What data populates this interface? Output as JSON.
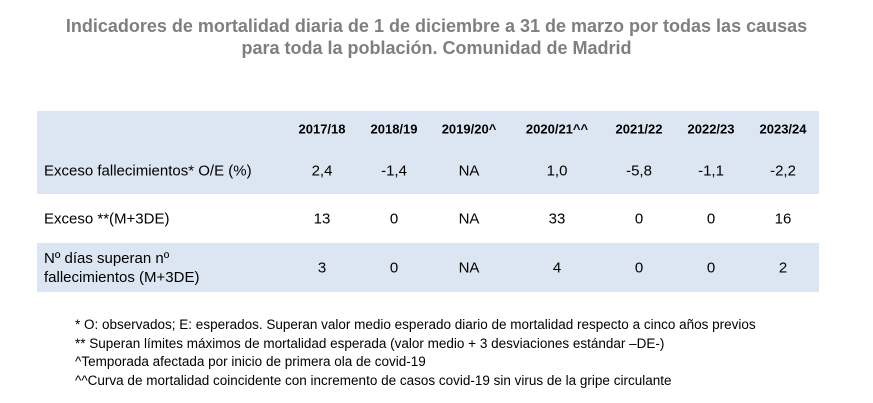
{
  "header": {
    "title": [
      "Indicadores de mortalidad diaria de 1 de diciembre a 31 de marzo por todas las causas",
      "para toda la población. Comunidad de Madrid"
    ]
  },
  "table": {
    "columns": [
      "2017/18",
      "2018/19",
      "2019/20^",
      "2020/21^^",
      "2021/22",
      "2022/23",
      "2023/24"
    ],
    "rows": [
      {
        "label": [
          "Exceso fallecimientos* O/E (%)"
        ],
        "values": [
          "2,4",
          "-1,4",
          "NA",
          "1,0",
          "-5,8",
          "-1,1",
          "-2,2"
        ]
      },
      {
        "label": [
          "Exceso **(M+3DE)"
        ],
        "values": [
          "13",
          "0",
          "NA",
          "33",
          "0",
          "0",
          "16"
        ]
      },
      {
        "label": [
          "Nº días superan nº",
          "fallecimientos (M+3DE)"
        ],
        "values": [
          "3",
          "0",
          "NA",
          "4",
          "0",
          "0",
          "2"
        ]
      }
    ]
  },
  "footnotes": [
    "* O: observados; E: esperados. Superan valor medio esperado diario de mortalidad respecto a cinco años previos",
    "** Superan límites máximos de mortalidad esperada (valor medio + 3 desviaciones estándar –DE-)",
    "^Temporada afectada por inicio de primera ola de covid-19",
    "^^Curva de mortalidad coincidente con incremento de casos covid-19 sin virus de la gripe circulante"
  ]
}
